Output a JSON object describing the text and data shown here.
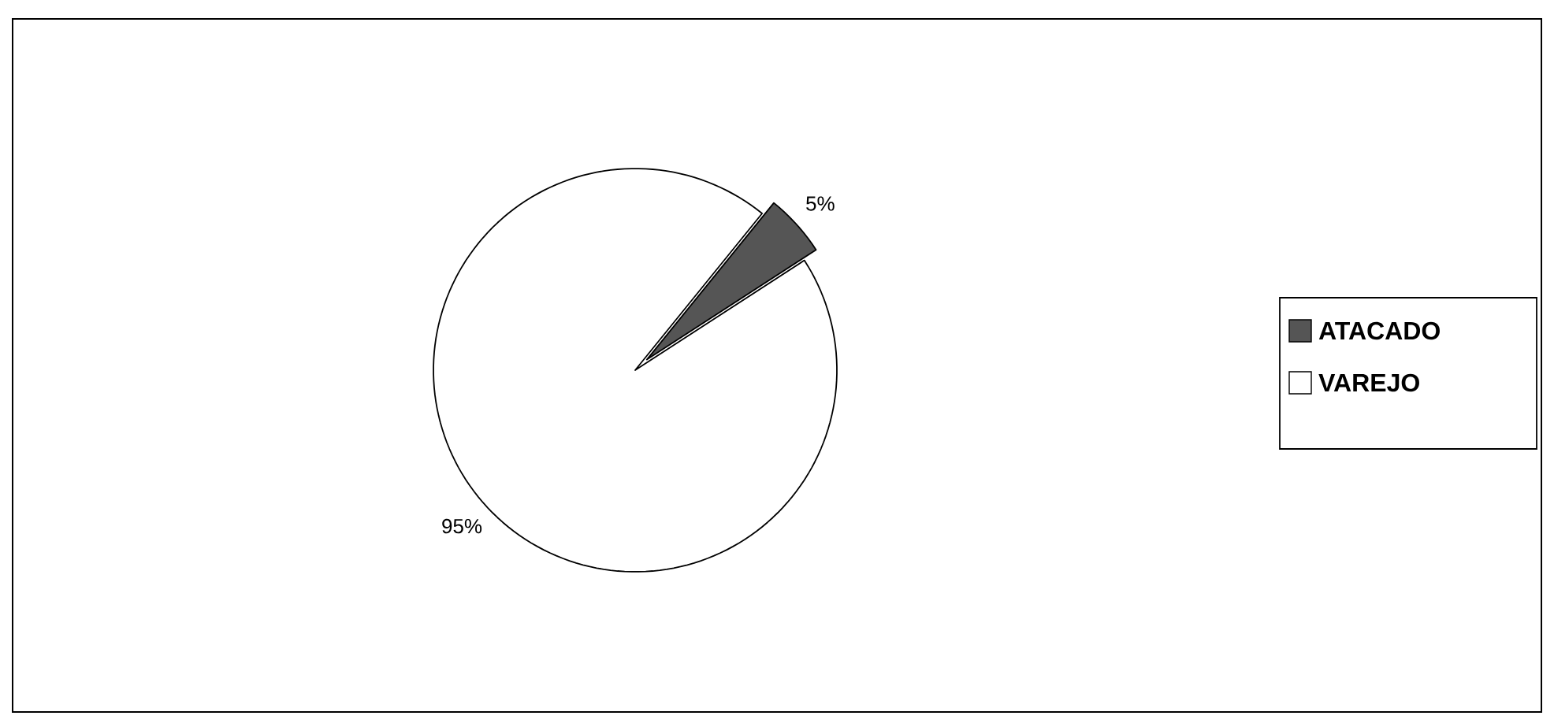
{
  "chart_data": {
    "type": "pie",
    "categories": [
      "ATACADO",
      "VAREJO"
    ],
    "values": [
      5,
      95
    ],
    "colors": [
      "#555555",
      "#ffffff"
    ],
    "value_labels": [
      "5%",
      "95%"
    ],
    "legend": "right"
  }
}
